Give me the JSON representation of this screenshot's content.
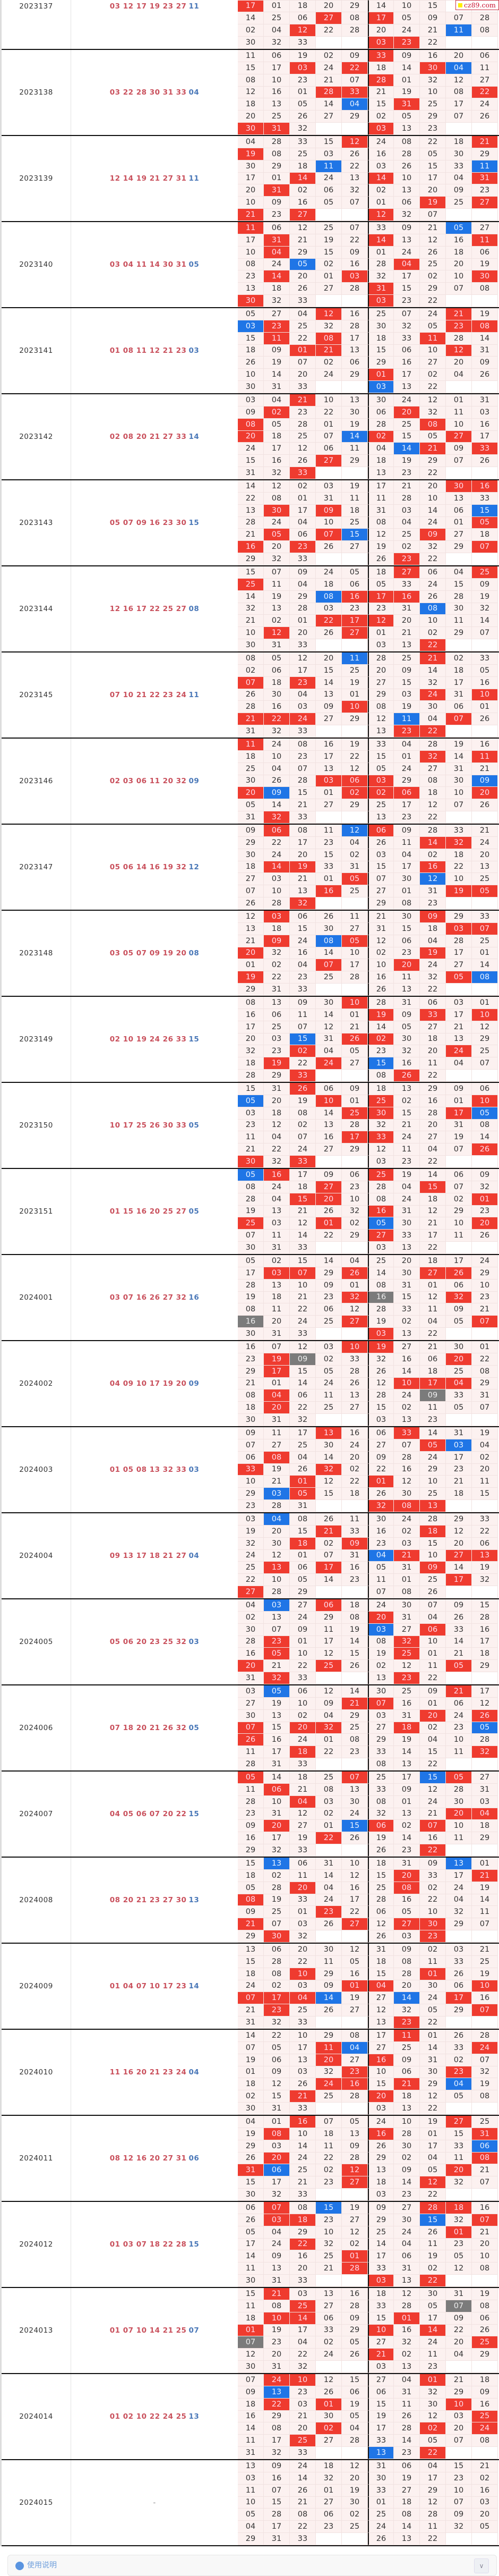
{
  "logo": {
    "text": "cz89.com"
  },
  "colors": {
    "red": "#ef3b2f",
    "blue": "#1f75e6",
    "both": "#7b7b7b"
  },
  "periods": [
    {
      "period": "2023137",
      "reds": "03 12 17 19 23 27",
      "blue": "11",
      "grid": [
        ". . . . . . . . . .",
        ". . . . . . . . . .",
        ". . . . . . . . . .",
        "17 01 18 20 29 14 10 15 . .",
        "14 25 06 27 08 17 05 09 07 28",
        "02 04 12 22 28 20 24 21 11 08",
        "30 32 33 . . 03 23 22 . ."
      ]
    },
    {
      "period": "2023138",
      "reds": "03 22 28 30 31 33",
      "blue": "04",
      "grid": [
        "11 06 19 02 09 33 09 16 20 06",
        "15 17 03 24 22 18 14 30 04 11",
        "08 10 23 21 07 28 01 32 12 27",
        "12 16 01 28 33 21 19 10 08 22",
        "18 13 05 14 04 15 31 25 17 24",
        "20 25 26 27 29 02 05 29 07 26",
        "30 31 32 . . 03 13 23 . ."
      ]
    },
    {
      "period": "2023139",
      "reds": "12 14 19 21 27 31",
      "blue": "11",
      "grid": [
        "04 28 33 15 12 24 08 22 18 21",
        "19 08 25 03 26 16 28 05 30 29",
        "30 29 18 11 22 03 26 15 33 11",
        "17 01 14 24 13 14 10 17 04 31",
        "20 31 02 06 32 02 13 20 09 23",
        "10 09 16 05 07 01 06 19 25 27",
        "21 23 27 . . 12 32 07 . ."
      ]
    },
    {
      "period": "2023140",
      "reds": "03 04 11 14 30 31",
      "blue": "05",
      "grid": [
        "11 06 12 25 07 33 09 21 05 27",
        "17 31 21 19 22 14 13 12 16 11",
        "10 04 29 15 09 01 24 26 18 06",
        "08 24 05 02 16 28 04 25 20 19",
        "23 14 20 01 03 32 17 02 10 30",
        "13 18 26 27 28 31 15 29 07 08",
        "30 32 33 . . 03 23 22 . ."
      ]
    },
    {
      "period": "2023141",
      "reds": "01 08 11 12 21 23",
      "blue": "03",
      "grid": [
        "05 27 04 12 16 25 07 24 21 19",
        "03 23 25 32 28 30 32 05 23 08",
        "15 11 22 08 17 18 33 11 28 14",
        "18 09 01 21 13 15 06 10 12 31",
        "26 19 07 02 06 29 16 27 20 09",
        "10 14 20 24 29 01 17 02 04 26",
        "30 31 33 . . 03 13 22 . ."
      ]
    },
    {
      "period": "2023142",
      "reds": "02 08 20 21 27 33",
      "blue": "14",
      "grid": [
        "03 04 21 10 13 30 24 12 01 31",
        "09 02 23 22 30 06 20 32 11 03",
        "08 05 28 01 19 28 25 08 10 16",
        "20 18 25 07 14 02 15 05 27 17",
        "24 17 12 06 11 04 14 21 09 33",
        "15 16 26 27 29 18 19 29 07 26",
        "31 32 33 . . 13 23 22 . ."
      ]
    },
    {
      "period": "2023143",
      "reds": "05 07 09 16 23 30",
      "blue": "15",
      "grid": [
        "14 12 02 03 19 17 21 20 30 16",
        "22 08 01 31 11 11 28 10 13 33",
        "13 30 17 09 18 31 03 14 06 15",
        "28 24 04 10 25 08 04 24 01 05",
        "21 05 06 07 15 12 25 09 27 18",
        "16 20 23 26 27 19 02 32 29 07",
        "29 32 33 . . 26 23 22 . ."
      ]
    },
    {
      "period": "2023144",
      "reds": "12 16 17 22 25 27",
      "blue": "08",
      "grid": [
        "15 07 09 24 05 18 27 06 04 25",
        "25 11 04 18 06 05 33 24 15 09",
        "14 19 29 08 16 17 16 26 28 19",
        "32 13 28 03 23 23 31 08 30 32",
        "21 02 01 22 17 12 20 10 11 14",
        "10 12 20 26 27 01 21 02 29 07",
        "30 31 33 . . 03 13 22 . ."
      ]
    },
    {
      "period": "2023145",
      "reds": "07 10 21 22 23 24",
      "blue": "11",
      "grid": [
        "08 05 12 20 11 28 25 21 02 33",
        "02 06 17 15 25 20 09 14 18 05",
        "07 18 23 14 19 27 15 32 17 16",
        "26 30 04 13 01 29 03 24 31 10",
        "28 16 03 09 10 08 19 30 06 01",
        "21 22 24 27 29 12 11 04 07 26",
        "31 32 33 . . 13 23 22 . ."
      ]
    },
    {
      "period": "2023146",
      "reds": "02 03 06 11 20 32",
      "blue": "09",
      "grid": [
        "11 24 08 16 19 33 04 28 19 16",
        "18 10 23 17 22 15 01 32 14 11",
        "25 04 07 13 12 05 24 27 31 21",
        "30 26 28 03 06 03 29 08 30 09",
        "20 09 15 01 02 02 06 18 10 20",
        "05 14 21 27 29 25 17 12 07 26",
        "31 32 33 . . 13 23 22 . ."
      ]
    },
    {
      "period": "2023147",
      "reds": "05 06 14 16 19 32",
      "blue": "12",
      "grid": [
        "09 06 08 11 12 06 09 28 33 21",
        "29 22 17 23 04 26 11 14 32 24",
        "30 24 20 15 02 03 04 02 18 20",
        "18 14 19 33 31 15 17 16 22 13",
        "27 03 21 01 05 07 30 12 10 25",
        "07 10 13 16 25 27 01 31 19 05",
        "26 28 32 . . 29 08 23 . ."
      ]
    },
    {
      "period": "2023148",
      "reds": "03 05 07 09 19 20",
      "blue": "08",
      "grid": [
        "12 03 06 26 11 21 30 09 29 33",
        "13 18 15 30 27 31 15 18 03 07",
        "21 09 24 08 05 12 06 04 28 25",
        "20 32 16 14 10 02 23 19 17 01",
        "01 02 04 07 17 10 20 24 27 14",
        "19 22 23 25 28 16 11 32 05 08",
        "29 31 33 . . 26 13 22 . ."
      ]
    },
    {
      "period": "2023149",
      "reds": "02 10 19 24 26 33",
      "blue": "15",
      "grid": [
        "08 13 09 30 10 28 31 06 03 01",
        "16 06 11 14 01 19 09 33 17 10",
        "17 25 07 12 21 14 05 27 21 12",
        "20 03 15 31 26 02 30 18 13 29",
        "32 23 02 04 05 23 32 20 24 25",
        "18 19 22 24 27 15 16 11 04 07",
        "28 29 33 . . 08 26 22 . ."
      ]
    },
    {
      "period": "2023150",
      "reds": "10 17 25 26 30 33",
      "blue": "05",
      "grid": [
        "15 31 26 06 09 18 13 29 09 06",
        "05 20 19 10 01 25 02 16 01 10",
        "03 18 08 14 25 30 15 28 17 05",
        "23 12 02 13 28 32 21 20 31 08",
        "11 04 07 16 17 33 24 27 19 14",
        "21 22 24 27 29 12 11 04 07 26",
        "30 32 33 . . 03 23 22 . ."
      ]
    },
    {
      "period": "2023151",
      "reds": "01 15 16 20 25 27",
      "blue": "05",
      "grid": [
        "05 16 17 09 06 25 19 14 06 09",
        "08 24 18 27 23 28 04 15 07 32",
        "28 04 15 20 10 08 24 18 02 01",
        "19 13 21 26 32 16 31 12 29 23",
        "25 03 12 01 02 05 30 21 10 20",
        "07 11 14 22 29 27 33 17 11 26",
        "30 31 33 . . 03 13 22 . ."
      ]
    },
    {
      "period": "2024001",
      "reds": "03 07 16 26 27 32",
      "blue": "16",
      "grid": [
        "05 02 15 14 04 25 20 18 17 24",
        "17 03 07 29 26 14 30 27 26 29",
        "28 13 10 09 01 08 31 01 06 10",
        "19 18 21 23 32 16 15 12 32 23",
        "08 11 22 06 12 28 33 11 09 21",
        "16 20 24 25 27 19 02 04 05 07",
        "30 31 33 . . 03 13 22 . ."
      ]
    },
    {
      "period": "2024002",
      "reds": "04 09 10 17 19 20",
      "blue": "09",
      "grid": [
        "16 07 12 03 10 19 27 21 30 01",
        "23 19 09 02 33 32 16 06 20 22",
        "29 17 15 05 28 26 14 18 25 08",
        "21 01 14 24 26 12 10 17 04 29",
        "08 04 06 11 13 28 24 09 33 31",
        "18 20 22 25 27 15 02 11 05 07",
        "30 31 32 . . 03 13 23 . ."
      ]
    },
    {
      "period": "2024003",
      "reds": "01 05 08 13 32 33",
      "blue": "03",
      "grid": [
        "09 11 17 13 16 06 33 14 31 19",
        "07 27 25 30 24 27 07 05 03 04",
        "06 08 04 14 20 09 28 24 17 02",
        "33 19 26 32 02 22 16 29 23 20",
        "10 21 01 12 22 01 12 10 21 11",
        "29 03 05 15 18 26 30 25 18 15",
        "23 28 31 . . 32 08 13 . ."
      ]
    },
    {
      "period": "2024004",
      "reds": "09 13 17 18 21 27",
      "blue": "04",
      "grid": [
        "03 04 08 26 11 30 24 28 29 33",
        "19 20 15 21 33 16 02 18 12 22",
        "32 30 18 02 09 23 03 15 20 06",
        "24 12 01 07 31 04 21 10 27 13",
        "25 13 06 17 16 05 31 09 14 19",
        "22 10 05 14 23 11 01 25 17 32",
        "27 28 29 . . 07 08 26 . ."
      ]
    },
    {
      "period": "2024005",
      "reds": "05 06 20 23 25 32",
      "blue": "03",
      "grid": [
        "04 03 27 06 18 24 30 07 09 15",
        "02 13 24 29 08 20 31 04 26 28",
        "30 07 09 11 19 03 27 06 33 16",
        "28 23 01 17 14 08 32 10 14 17",
        "16 05 10 12 15 19 25 01 21 18",
        "20 21 22 25 26 02 12 11 05 29",
        "31 32 33 . . 13 23 22 . ."
      ]
    },
    {
      "period": "2024006",
      "reds": "07 18 20 21 26 32",
      "blue": "05",
      "grid": [
        "03 05 06 12 14 30 25 09 21 17",
        "27 19 10 09 21 07 16 01 06 12",
        "30 13 02 04 29 03 31 20 24 26",
        "07 15 20 32 25 27 18 02 23 05",
        "26 16 24 01 08 29 19 04 10 28",
        "11 17 18 22 23 33 14 15 11 32",
        "28 31 33 . . 08 13 22 . ."
      ]
    },
    {
      "period": "2024007",
      "reds": "04 05 06 07 20 22",
      "blue": "15",
      "grid": [
        "05 14 18 25 07 25 17 15 05 27",
        "11 06 21 08 13 33 09 12 28 31",
        "28 10 04 03 30 08 01 24 30 03",
        "23 31 12 02 24 32 13 21 20 04",
        "09 20 27 01 15 06 02 07 10 18",
        "16 17 19 22 26 19 14 16 11 29",
        "29 32 33 . . 26 23 22 . ."
      ]
    },
    {
      "period": "2024008",
      "reds": "08 20 21 23 27 30",
      "blue": "13",
      "grid": [
        "15 13 06 31 10 18 31 09 13 01",
        "18 02 11 14 12 15 20 33 17 21",
        "05 28 20 04 16 25 08 02 24 19",
        "08 19 33 24 17 28 16 22 04 14",
        "09 25 01 23 22 06 05 10 32 11",
        "21 07 03 26 27 12 27 30 29 07",
        "29 30 32 . . 26 03 23 . ."
      ]
    },
    {
      "period": "2024009",
      "reds": "01 04 07 10 17 23",
      "blue": "14",
      "grid": [
        "13 06 20 30 12 31 09 02 03 21",
        "15 28 22 11 05 18 08 11 33 25",
        "18 08 10 29 16 15 28 01 26 19",
        "24 02 03 09 01 04 20 30 06 10",
        "07 17 04 14 19 27 14 24 17 16",
        "21 23 25 26 27 12 32 05 29 07",
        "31 32 33 . . 13 23 22 . ."
      ]
    },
    {
      "period": "2024010",
      "reds": "11 16 20 21 23 24",
      "blue": "04",
      "grid": [
        "14 22 10 29 08 17 11 01 26 28",
        "07 05 17 11 04 27 25 14 33 24",
        "19 06 13 20 27 16 09 31 02 07",
        "01 09 03 32 23 10 06 30 23 32",
        "18 12 26 24 16 15 21 29 04 19",
        "02 15 21 25 28 20 18 12 05 08",
        "30 31 33 . . 03 13 22 . ."
      ]
    },
    {
      "period": "2024011",
      "reds": "08 12 16 20 27 31",
      "blue": "06",
      "grid": [
        "04 01 16 07 05 24 10 19 27 25",
        "19 08 10 18 13 16 28 01 15 31",
        "29 03 14 11 09 26 30 17 33 06",
        "26 20 24 22 28 29 02 04 11 08",
        "31 06 25 02 12 13 09 05 20 21",
        "15 17 21 23 27 18 14 12 32 07",
        "30 32 33 . . 03 23 22 . ."
      ]
    },
    {
      "period": "2024012",
      "reds": "01 03 07 18 22 28",
      "blue": "15",
      "grid": [
        "06 07 08 15 19 09 27 28 18 16",
        "26 03 18 23 27 29 30 15 32 07",
        "05 04 29 10 12 25 24 26 01 21",
        "17 24 22 32 02 14 04 11 23 20",
        "14 09 16 25 01 17 06 19 05 10",
        "11 13 20 21 28 33 31 02 12 08",
        "30 31 33 . . 03 13 22 . ."
      ]
    },
    {
      "period": "2024013",
      "reds": "01 07 10 14 21 25",
      "blue": "07",
      "grid": [
        "15 21 03 13 16 18 12 30 31 19",
        "11 08 25 27 28 33 28 05 07 08",
        "18 10 14 06 09 15 01 17 09 06",
        "01 19 17 33 29 10 16 14 22 26",
        "07 23 04 02 05 27 32 24 20 25",
        "12 20 22 24 26 21 02 11 04 29",
        "30 31 32 . . 03 13 23 . ."
      ]
    },
    {
      "period": "2024014",
      "reds": "01 02 10 22 24 25",
      "blue": "13",
      "grid": [
        "07 24 10 12 15 27 04 01 21 18",
        "09 13 23 26 06 06 31 32 29 09",
        "18 22 03 01 19 15 11 30 10 16",
        "16 29 21 30 05 19 26 12 03 25",
        "14 08 20 02 04 17 28 02 20 24",
        "11 17 25 27 28 33 14 05 07 08",
        "31 32 33 . . 13 23 22 . ."
      ]
    },
    {
      "period": "2024015",
      "reds": "",
      "blue": "",
      "none": "-",
      "grid": [
        "13 09 24 18 12 31 06 04 15 21",
        "03 16 14 32 20 30 19 17 23 02",
        "11 07 26 01 19 33 27 29 10 16",
        "10 15 21 27 30 01 18 12 07 03",
        "05 28 08 06 02 25 08 28 09 20",
        "04 17 22 23 25 24 14 11 32 05",
        "29 31 33 . . 26 13 22 . ."
      ]
    }
  ],
  "footer": {
    "label": "使用说明",
    "toggle_icon": "chevron-down"
  }
}
